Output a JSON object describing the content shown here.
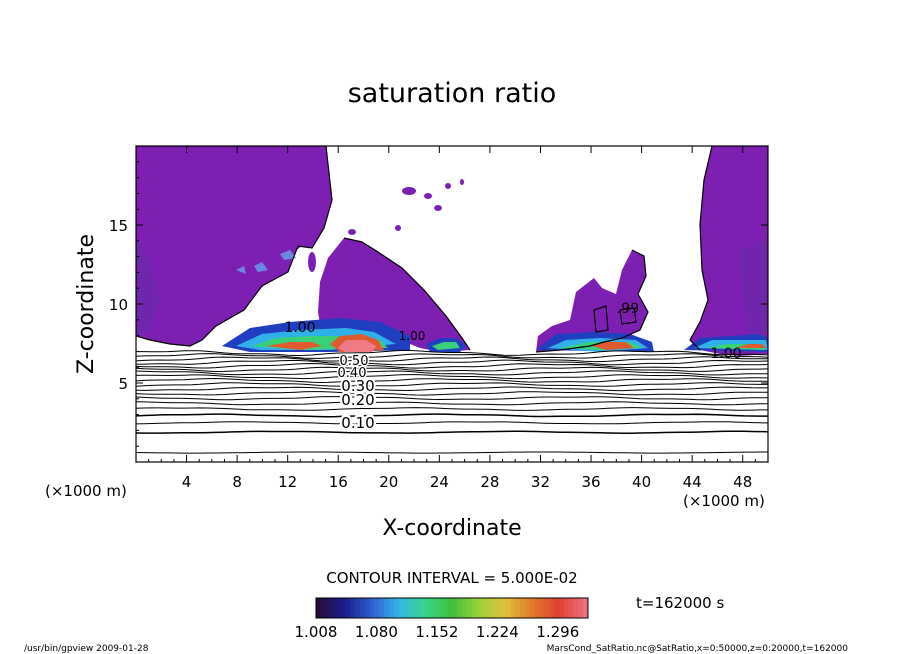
{
  "chart_data": {
    "type": "contour",
    "title": "saturation ratio",
    "xlabel": "X-coordinate",
    "ylabel": "Z-coordinate",
    "x_unit": "(×1000 m)",
    "y_unit": "(×1000 m)",
    "xlim": [
      0,
      50
    ],
    "ylim": [
      0,
      20
    ],
    "x_ticks": [
      4,
      8,
      12,
      16,
      20,
      24,
      28,
      32,
      36,
      40,
      44,
      48
    ],
    "y_ticks": [
      5,
      10,
      15
    ],
    "contour_interval_text": "CONTOUR INTERVAL = 5.000E-02",
    "contour_labels": [
      "0.10",
      "0.20",
      "0.30",
      "0.40",
      "0.50",
      "1.00",
      ".99",
      "1.00",
      "1.00"
    ],
    "contour_levels_lower": [
      0.05,
      0.1,
      0.15,
      0.2,
      0.25,
      0.3,
      0.35,
      0.4,
      0.45,
      0.5,
      0.55,
      0.6,
      0.65,
      0.7,
      0.75,
      0.8,
      0.85,
      0.9,
      0.95
    ],
    "colorbar": {
      "min": 1.008,
      "max": 1.332,
      "tick_labels": [
        "1.008",
        "1.080",
        "1.152",
        "1.224",
        "1.296"
      ],
      "colors": [
        "#2a0b3e",
        "#1a1f8c",
        "#2f5fd0",
        "#35b6e6",
        "#39d48a",
        "#3fbf3a",
        "#9bd23a",
        "#e0c23a",
        "#e07a2a",
        "#e04030",
        "#f07080"
      ]
    },
    "time_label": "t=162000 s",
    "footer_left": "/usr/bin/gpview   2009-01-28",
    "footer_right": "MarsCond_SatRatio.nc@SatRatio,x=0:50000,z=0:20000,t=162000"
  }
}
